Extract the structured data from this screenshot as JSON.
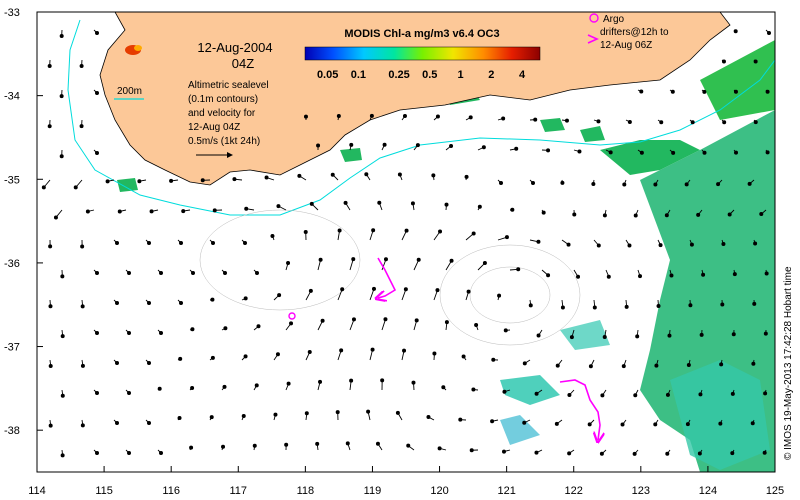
{
  "date_title": "12-Aug-2004",
  "time_title": "04Z",
  "colorbar": {
    "title": "MODIS Chl-a mg/m3 v6.4 OC3",
    "tick_labels": [
      "0.05",
      "0.1",
      "0.25",
      "0.5",
      "1",
      "2",
      "4"
    ],
    "colors": [
      "#0000b4",
      "#0050ff",
      "#00c8ff",
      "#00e6a0",
      "#78f000",
      "#f0e600",
      "#ff8c00",
      "#e61e00",
      "#8c0000"
    ]
  },
  "legend": {
    "contour_label": "200m",
    "description_lines": [
      "Altimetric sealevel",
      "(0.1m contours)",
      "and velocity for",
      "12-Aug 04Z"
    ],
    "arrow_scale_label": "0.5m/s (1kt 24h)",
    "argo_lines": [
      "Argo",
      "drifters@12h to",
      "12-Aug 06Z"
    ]
  },
  "x_axis": {
    "ticks": [
      "114",
      "115",
      "116",
      "117",
      "118",
      "119",
      "120",
      "121",
      "122",
      "123",
      "124",
      "125"
    ],
    "range": [
      114,
      125
    ]
  },
  "y_axis": {
    "ticks": [
      "-33",
      "-34",
      "-35",
      "-36",
      "-37",
      "-38"
    ],
    "range": [
      -38.5,
      -33
    ]
  },
  "credit": "© IMOS 19-May-2013 17:42:28 Hobart time",
  "colors": {
    "land": "#fcc898",
    "contour": "#00dcdc",
    "argo": "#ff00ff",
    "chl_green": "#22b860",
    "chl_teal": "#30c8b0"
  }
}
